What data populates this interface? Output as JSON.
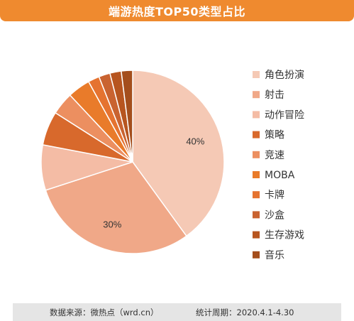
{
  "header": {
    "title": "端游热度TOP50类型占比"
  },
  "footer": {
    "source": "数据来源：微热点（wrd.cn）",
    "period": "统计周期：2020.4.1-4.30"
  },
  "chart_data": {
    "type": "pie",
    "title": "端游热度TOP50类型占比",
    "categories": [
      "角色扮演",
      "射击",
      "动作冒险",
      "策略",
      "竞速",
      "MOBA",
      "卡牌",
      "沙盒",
      "生存游戏",
      "音乐"
    ],
    "values": [
      40,
      30,
      8,
      6,
      4,
      4,
      2,
      2,
      2,
      2
    ],
    "data_labels": [
      "40%",
      "30%",
      "",
      "",
      "",
      "",
      "",
      "",
      "",
      ""
    ],
    "colors": [
      "#f5c9b5",
      "#f0a888",
      "#f4bca5",
      "#d8692c",
      "#ec8f60",
      "#e97b2a",
      "#e57330",
      "#c96330",
      "#b7551f",
      "#a44e1c"
    ],
    "legend_position": "right",
    "start_angle_deg": 0,
    "direction": "clockwise"
  }
}
